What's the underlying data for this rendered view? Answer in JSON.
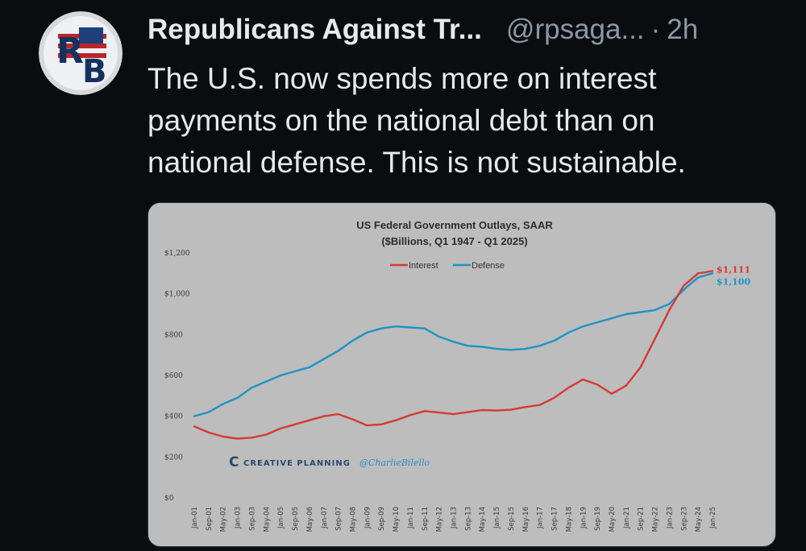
{
  "tweet": {
    "author_name": "Republicans Against Tr...",
    "handle": "@rpsaga...",
    "separator": "·",
    "time": "2h",
    "text": "The U.S. now spends more on interest\npayments on the national debt than on\nnational defense. This is not sustainable.",
    "avatar_icon": "rb-logo-icon",
    "avatar_letters": [
      "R",
      "B"
    ]
  },
  "chart_image": {
    "watermark_brand": "CREATIVE PLANNING",
    "watermark_handle": "@CharlieBilello"
  },
  "chart_data": {
    "type": "line",
    "title": "US Federal Government Outlays, SAAR",
    "subtitle": "($Billions, Q1 1947 - Q1 2025)",
    "ylim": [
      0,
      1200
    ],
    "y_ticks": [
      "$0",
      "$200",
      "$400",
      "$600",
      "$800",
      "$1,000",
      "$1,200"
    ],
    "y_tick_values": [
      0,
      200,
      400,
      600,
      800,
      1000,
      1200
    ],
    "x_ticks": [
      "Jan-01",
      "Sep-01",
      "May-02",
      "Jan-03",
      "Sep-03",
      "May-04",
      "Jan-05",
      "Sep-05",
      "May-06",
      "Jan-07",
      "Sep-07",
      "May-08",
      "Jan-09",
      "Sep-09",
      "May-10",
      "Jan-11",
      "Sep-11",
      "May-12",
      "Jan-13",
      "Sep-13",
      "May-14",
      "Jan-15",
      "Sep-15",
      "May-16",
      "Jan-17",
      "Sep-17",
      "May-18",
      "Jan-19",
      "Sep-19",
      "May-20",
      "Jan-21",
      "Sep-21",
      "May-22",
      "Jan-23",
      "Sep-23",
      "May-24",
      "Jan-25"
    ],
    "legend_position": "top-center",
    "grid": false,
    "series": [
      {
        "name": "Interest",
        "color": "#d63a32",
        "end_label": "$1,111",
        "values": [
          350,
          320,
          300,
          290,
          295,
          310,
          340,
          360,
          380,
          400,
          410,
          385,
          355,
          360,
          380,
          405,
          425,
          418,
          410,
          420,
          430,
          428,
          432,
          445,
          455,
          490,
          540,
          580,
          555,
          510,
          550,
          640,
          780,
          920,
          1040,
          1100,
          1111
        ]
      },
      {
        "name": "Defense",
        "color": "#1f93c6",
        "end_label": "$1,100",
        "values": [
          400,
          420,
          460,
          490,
          540,
          570,
          600,
          620,
          640,
          680,
          720,
          770,
          810,
          830,
          840,
          835,
          830,
          790,
          765,
          745,
          740,
          730,
          725,
          730,
          745,
          770,
          810,
          840,
          860,
          880,
          900,
          910,
          920,
          950,
          1020,
          1080,
          1100
        ]
      }
    ]
  }
}
